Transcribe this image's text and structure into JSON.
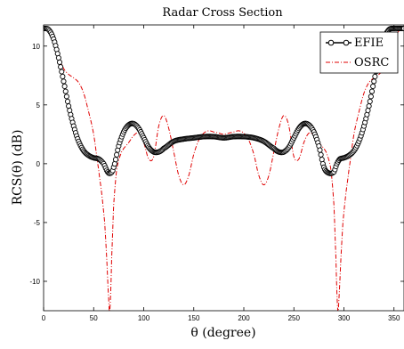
{
  "chart_data": {
    "type": "line",
    "title": "Radar Cross Section",
    "xlabel": "θ (degree)",
    "ylabel": "RCS(θ) (dB)",
    "xlim": [
      0,
      360
    ],
    "ylim": [
      -12.5,
      11.8
    ],
    "x_ticks": [
      "0",
      "50",
      "100",
      "150",
      "200",
      "250",
      "300",
      "350"
    ],
    "y_ticks": [
      "10",
      "5",
      "0",
      "-5",
      "-10"
    ],
    "x_tick_values": [
      0,
      50,
      100,
      150,
      200,
      250,
      300,
      350
    ],
    "y_tick_values": [
      10,
      5,
      0,
      -5,
      -10
    ],
    "grid": false,
    "legend_position": "top-right",
    "series": [
      {
        "name": "EFIE",
        "color": "#000000",
        "style": "solid-circle-markers",
        "x": [
          0,
          5,
          10,
          15,
          20,
          25,
          30,
          35,
          40,
          45,
          50,
          55,
          60,
          64,
          67,
          70,
          75,
          80,
          85,
          90,
          95,
          100,
          105,
          110,
          115,
          120,
          130,
          140,
          150,
          160,
          170,
          180,
          190,
          200,
          210,
          220,
          230,
          235,
          240,
          245,
          250,
          255,
          260,
          265,
          270,
          275,
          280,
          285,
          290,
          293,
          296,
          300,
          305,
          310,
          315,
          320,
          325,
          330,
          335,
          340,
          345,
          350,
          355,
          360
        ],
        "y": [
          11.5,
          11.4,
          10.6,
          9.0,
          7.0,
          4.9,
          3.2,
          1.9,
          1.1,
          0.7,
          0.5,
          0.4,
          0.0,
          -0.7,
          -0.8,
          -0.3,
          1.5,
          2.7,
          3.3,
          3.4,
          3.0,
          2.2,
          1.4,
          1.0,
          1.0,
          1.3,
          1.9,
          2.1,
          2.2,
          2.3,
          2.3,
          2.2,
          2.3,
          2.3,
          2.2,
          1.9,
          1.3,
          1.0,
          1.0,
          1.4,
          2.2,
          3.0,
          3.4,
          3.3,
          2.7,
          1.5,
          -0.3,
          -0.8,
          -0.7,
          0.0,
          0.4,
          0.5,
          0.7,
          1.1,
          1.9,
          3.2,
          4.9,
          7.0,
          9.0,
          10.6,
          11.4,
          11.5,
          11.5,
          11.5
        ]
      },
      {
        "name": "OSRC",
        "color": "#e00000",
        "style": "dash-dot",
        "x": [
          0,
          5,
          10,
          15,
          20,
          25,
          30,
          35,
          40,
          45,
          50,
          55,
          58,
          61,
          63,
          65,
          66,
          67,
          68,
          70,
          73,
          77,
          80,
          85,
          90,
          95,
          100,
          105,
          110,
          115,
          120,
          125,
          130,
          135,
          140,
          145,
          150,
          155,
          160,
          165,
          170,
          175,
          180,
          185,
          190,
          195,
          200,
          205,
          210,
          215,
          220,
          225,
          230,
          235,
          240,
          245,
          250,
          255,
          260,
          265,
          270,
          275,
          280,
          283,
          287,
          290,
          292,
          293,
          294,
          295,
          297,
          299,
          302,
          305,
          310,
          315,
          320,
          325,
          330,
          335,
          340,
          345,
          350,
          355,
          360
        ],
        "y": [
          11.5,
          11.3,
          10.5,
          9.2,
          8.1,
          7.6,
          7.3,
          6.9,
          6.0,
          4.4,
          2.5,
          -0.5,
          -2.5,
          -5.0,
          -8.0,
          -11.5,
          -12.6,
          -11.0,
          -8.0,
          -3.5,
          -0.5,
          0.8,
          1.3,
          1.8,
          2.4,
          2.6,
          1.8,
          0.4,
          0.6,
          3.2,
          4.1,
          3.0,
          1.0,
          -1.0,
          -1.8,
          -1.0,
          0.8,
          2.0,
          2.6,
          2.8,
          2.7,
          2.6,
          2.5,
          2.6,
          2.7,
          2.8,
          2.6,
          2.0,
          0.8,
          -1.0,
          -1.8,
          -1.0,
          1.0,
          3.0,
          4.1,
          3.2,
          0.6,
          0.4,
          1.8,
          2.6,
          2.4,
          1.8,
          1.3,
          0.8,
          -0.5,
          -3.5,
          -8.0,
          -11.0,
          -12.6,
          -11.5,
          -8.0,
          -5.0,
          -2.5,
          -0.5,
          2.5,
          4.4,
          6.0,
          6.9,
          7.3,
          7.6,
          8.1,
          9.2,
          10.5,
          11.3,
          11.5
        ]
      }
    ]
  }
}
